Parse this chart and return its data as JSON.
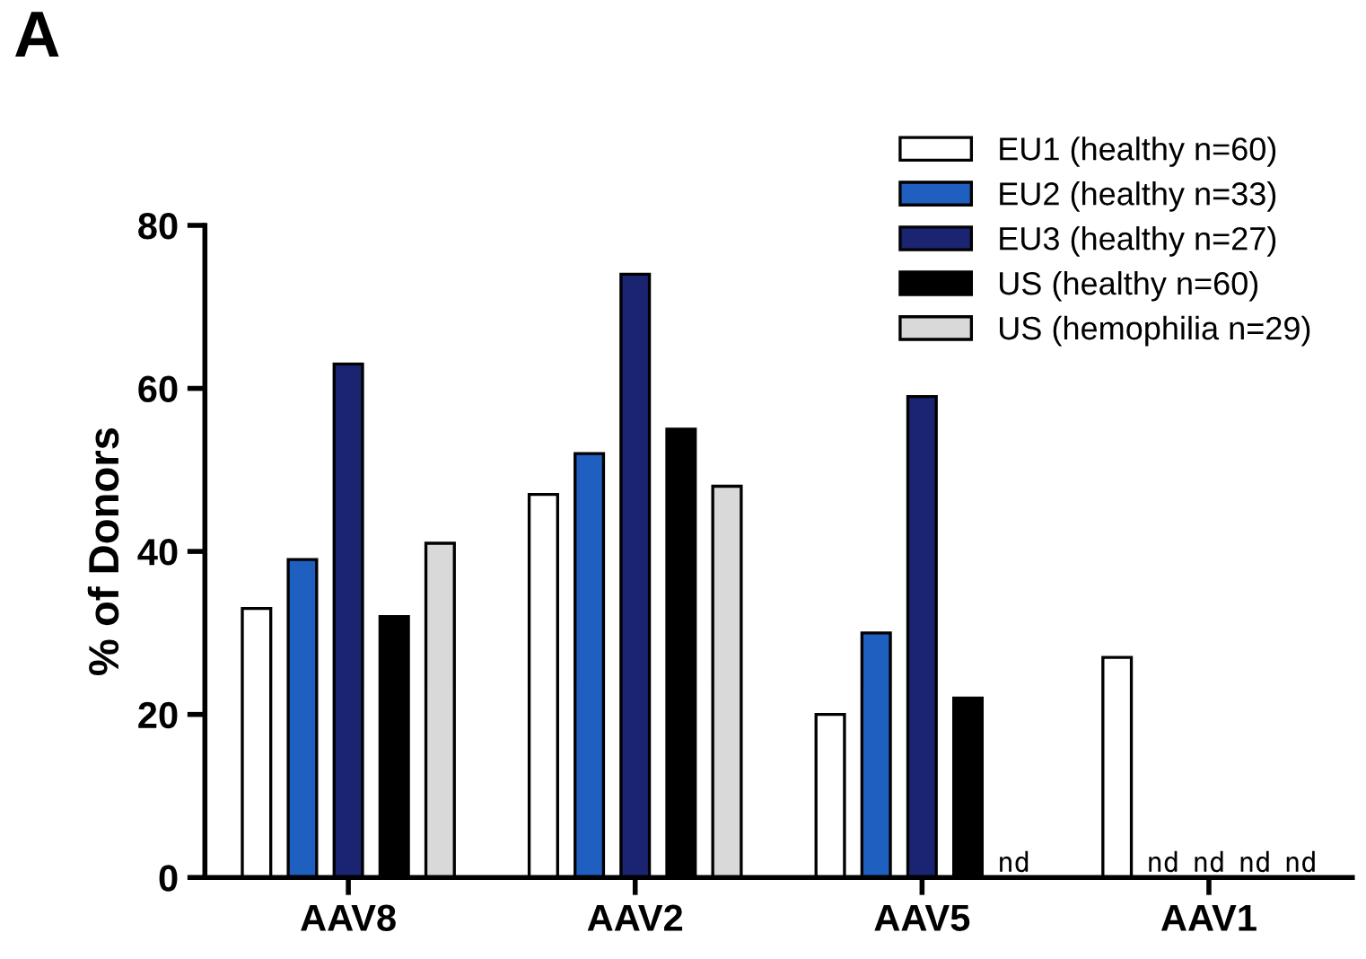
{
  "chart_data": {
    "type": "bar",
    "title": "A",
    "ylabel": "% of Donors",
    "categories": [
      "AAV8",
      "AAV2",
      "AAV5",
      "AAV1"
    ],
    "series": [
      {
        "name": "EU1 (healthy n=60)",
        "color": "#ffffff",
        "values": [
          33,
          47,
          20,
          27
        ]
      },
      {
        "name": "EU2 (healthy n=33)",
        "color": "#1f5fc0",
        "values": [
          39,
          52,
          30,
          null
        ],
        "value_labels": [
          null,
          null,
          null,
          "nd"
        ]
      },
      {
        "name": "EU3 (healthy n=27)",
        "color": "#1a2470",
        "values": [
          63,
          74,
          59,
          null
        ],
        "value_labels": [
          null,
          null,
          null,
          "nd"
        ]
      },
      {
        "name": "US (healthy n=60)",
        "color": "#000000",
        "values": [
          32,
          55,
          22,
          null
        ],
        "value_labels": [
          null,
          null,
          null,
          "nd"
        ]
      },
      {
        "name": "US (hemophilia n=29)",
        "color": "#d9d9d9",
        "values": [
          41,
          48,
          null,
          null
        ],
        "value_labels": [
          null,
          null,
          "nd",
          "nd"
        ]
      }
    ],
    "ylim": [
      0,
      80
    ],
    "yticks": [
      0,
      20,
      40,
      60,
      80
    ],
    "grid": false,
    "legend": "top right"
  }
}
